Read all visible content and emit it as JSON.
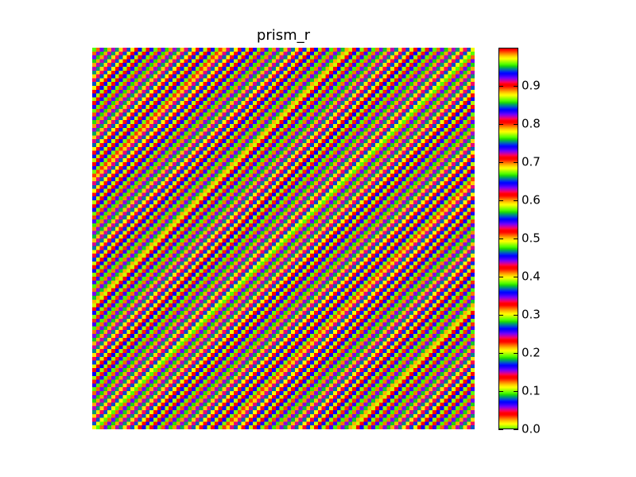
{
  "chart_data": {
    "type": "heatmap",
    "title": "prism_r",
    "colormap": "prism_r",
    "grid": false,
    "axes_visible": false,
    "value_range": [
      0,
      1
    ],
    "pattern": "diagonal bands: value = frac(0.03*(i+j)), i,j = 0..99",
    "rows": 100,
    "cols": 100,
    "colorbar": {
      "position": "right",
      "ticks": [
        "0.0",
        "0.1",
        "0.2",
        "0.3",
        "0.4",
        "0.5",
        "0.6",
        "0.7",
        "0.8",
        "0.9"
      ],
      "tick_values": [
        0.0,
        0.1,
        0.2,
        0.3,
        0.4,
        0.5,
        0.6,
        0.7,
        0.8,
        0.9
      ]
    }
  }
}
